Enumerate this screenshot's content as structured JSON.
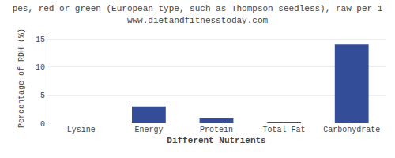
{
  "chart_data": {
    "type": "bar",
    "title": "pes, red or green (European type, such as Thompson seedless), raw per 1",
    "subtitle": "www.dietandfitnesstoday.com",
    "categories": [
      "Lysine",
      "Energy",
      "Protein",
      "Total Fat",
      "Carbohydrate"
    ],
    "values": [
      0.0,
      3.0,
      1.0,
      0.1,
      14.0
    ],
    "color": "#334d99",
    "xlabel": "Different Nutrients",
    "ylabel": "Percentage of RDH (%)",
    "ylim": [
      0,
      16
    ],
    "yticks": [
      0,
      5,
      10,
      15
    ],
    "grid": true
  }
}
